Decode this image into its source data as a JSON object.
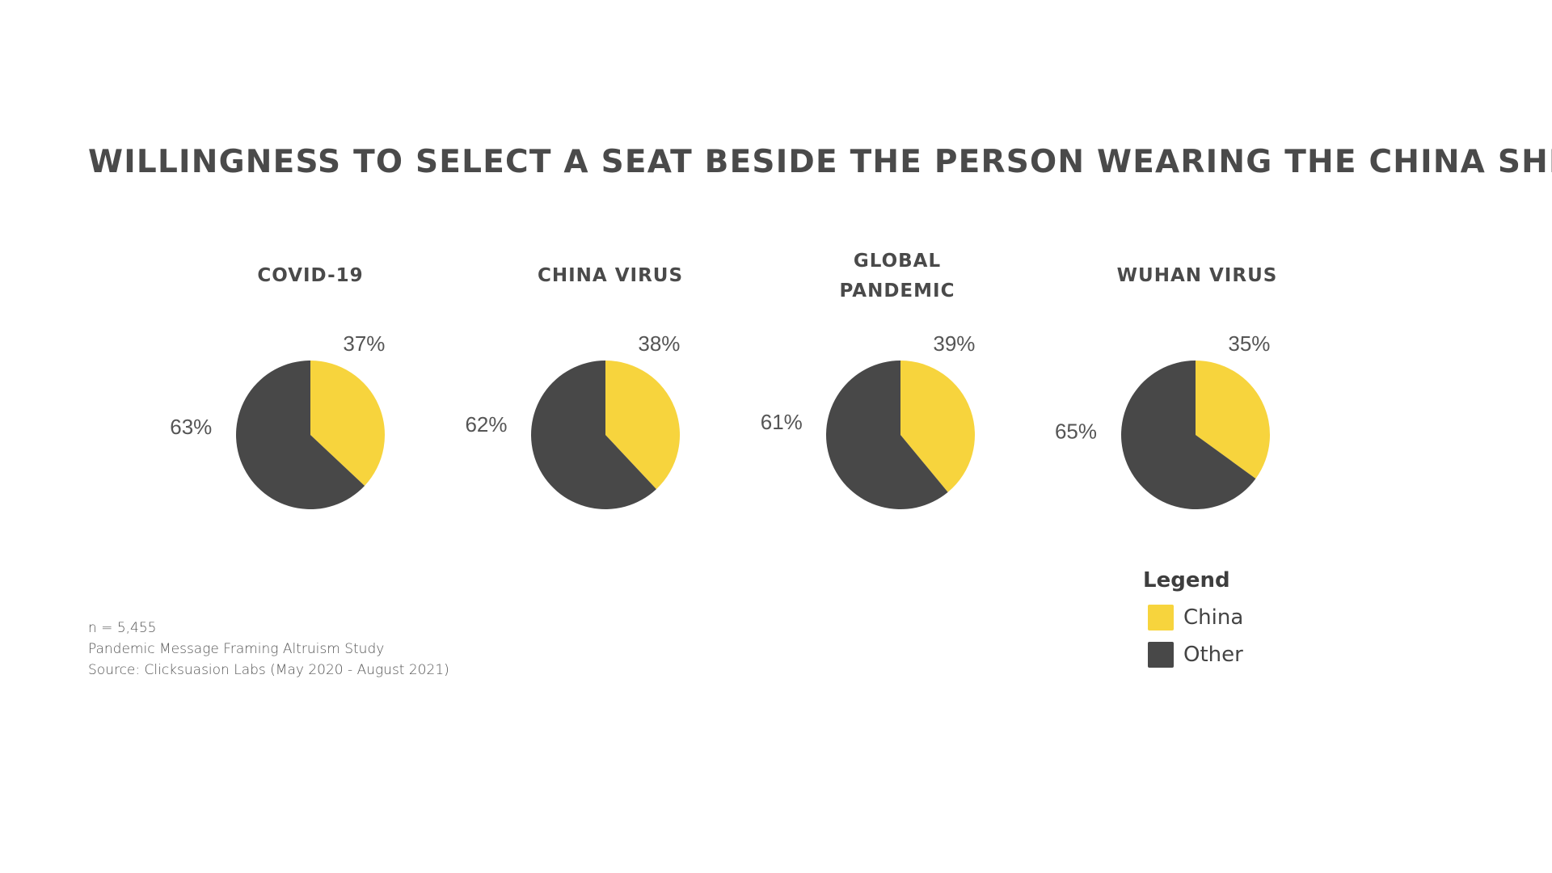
{
  "title": "WILLINGNESS TO SELECT A SEAT BESIDE THE PERSON WEARING THE CHINA SHIRT",
  "colors": {
    "china": "#F7D43D",
    "other": "#484848",
    "text": "#4a4a4a"
  },
  "chart_data": [
    {
      "type": "pie",
      "title": "COVID-19",
      "slices": [
        {
          "name": "China",
          "value": 37,
          "label": "37%"
        },
        {
          "name": "Other",
          "value": 63,
          "label": "63%"
        }
      ]
    },
    {
      "type": "pie",
      "title": "CHINA VIRUS",
      "slices": [
        {
          "name": "China",
          "value": 38,
          "label": "38%"
        },
        {
          "name": "Other",
          "value": 62,
          "label": "62%"
        }
      ]
    },
    {
      "type": "pie",
      "title": "GLOBAL PANDEMIC",
      "title_lines": [
        "GLOBAL",
        "PANDEMIC"
      ],
      "slices": [
        {
          "name": "China",
          "value": 39,
          "label": "39%"
        },
        {
          "name": "Other",
          "value": 61,
          "label": "61%"
        }
      ]
    },
    {
      "type": "pie",
      "title": "WUHAN VIRUS",
      "slices": [
        {
          "name": "China",
          "value": 35,
          "label": "35%"
        },
        {
          "name": "Other",
          "value": 65,
          "label": "65%"
        }
      ]
    }
  ],
  "footnote": {
    "n": "n = 5,455",
    "study": "Pandemic Message Framing Altruism Study",
    "source": "Source: Clicksuasion Labs (May 2020 - August 2021)"
  },
  "legend": {
    "title": "Legend",
    "items": [
      {
        "label": "China",
        "color": "#F7D43D"
      },
      {
        "label": "Other",
        "color": "#484848"
      }
    ]
  }
}
